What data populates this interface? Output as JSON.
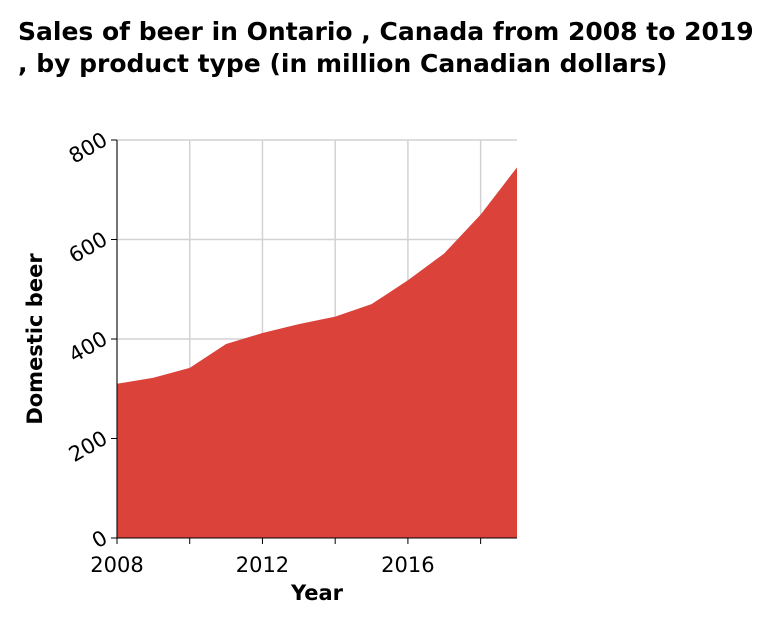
{
  "chart_data": {
    "type": "area",
    "title": "Sales of beer in Ontario , Canada from 2008 to 2019 , by product type (in million Canadian dollars)",
    "xlabel": "Year",
    "ylabel": "Domestic beer",
    "x": [
      2008,
      2009,
      2010,
      2011,
      2012,
      2013,
      2014,
      2015,
      2016,
      2017,
      2018,
      2019
    ],
    "series": [
      {
        "values": [
          310,
          322,
          342,
          390,
          412,
          430,
          445,
          470,
          518,
          572,
          650,
          745
        ]
      }
    ],
    "xlim": [
      2008,
      2019
    ],
    "ylim": [
      0,
      800
    ],
    "xticks": [
      "2008",
      "2012",
      "2016"
    ],
    "yticks": [
      "0",
      "200",
      "400",
      "600",
      "800"
    ],
    "grid": true,
    "legend": "none",
    "fill_color": "#db4239",
    "grid_color": "#d2d2d2"
  }
}
